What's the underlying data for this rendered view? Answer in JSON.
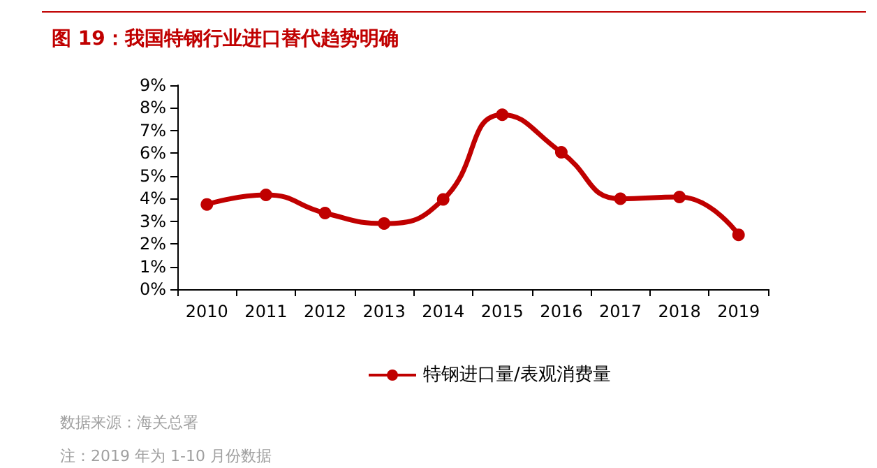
{
  "chart_data": {
    "type": "line",
    "title": "图 19：我国特钢行业进口替代趋势明确",
    "categories": [
      "2010",
      "2011",
      "2012",
      "2013",
      "2014",
      "2015",
      "2016",
      "2017",
      "2018",
      "2019"
    ],
    "series": [
      {
        "name": "特钢进口量/表观消费量",
        "color": "#c00000",
        "values": [
          3.74,
          4.16,
          3.36,
          2.9,
          3.96,
          7.7,
          6.04,
          3.99,
          4.07,
          2.4
        ]
      }
    ],
    "ylim": [
      0,
      9
    ],
    "yticks": [
      {
        "value": 0,
        "label": "0%"
      },
      {
        "value": 1,
        "label": "1%"
      },
      {
        "value": 2,
        "label": "2%"
      },
      {
        "value": 3,
        "label": "3%"
      },
      {
        "value": 4,
        "label": "4%"
      },
      {
        "value": 5,
        "label": "5%"
      },
      {
        "value": 6,
        "label": "6%"
      },
      {
        "value": 7,
        "label": "7%"
      },
      {
        "value": 8,
        "label": "8%"
      },
      {
        "value": 9,
        "label": "9%"
      }
    ],
    "grid": false,
    "legend": "bottom",
    "marker": "circle",
    "line_style": "solid",
    "annotations": [
      "数据来源：海关总署",
      "注：2019 年为 1-10 月份数据"
    ]
  }
}
